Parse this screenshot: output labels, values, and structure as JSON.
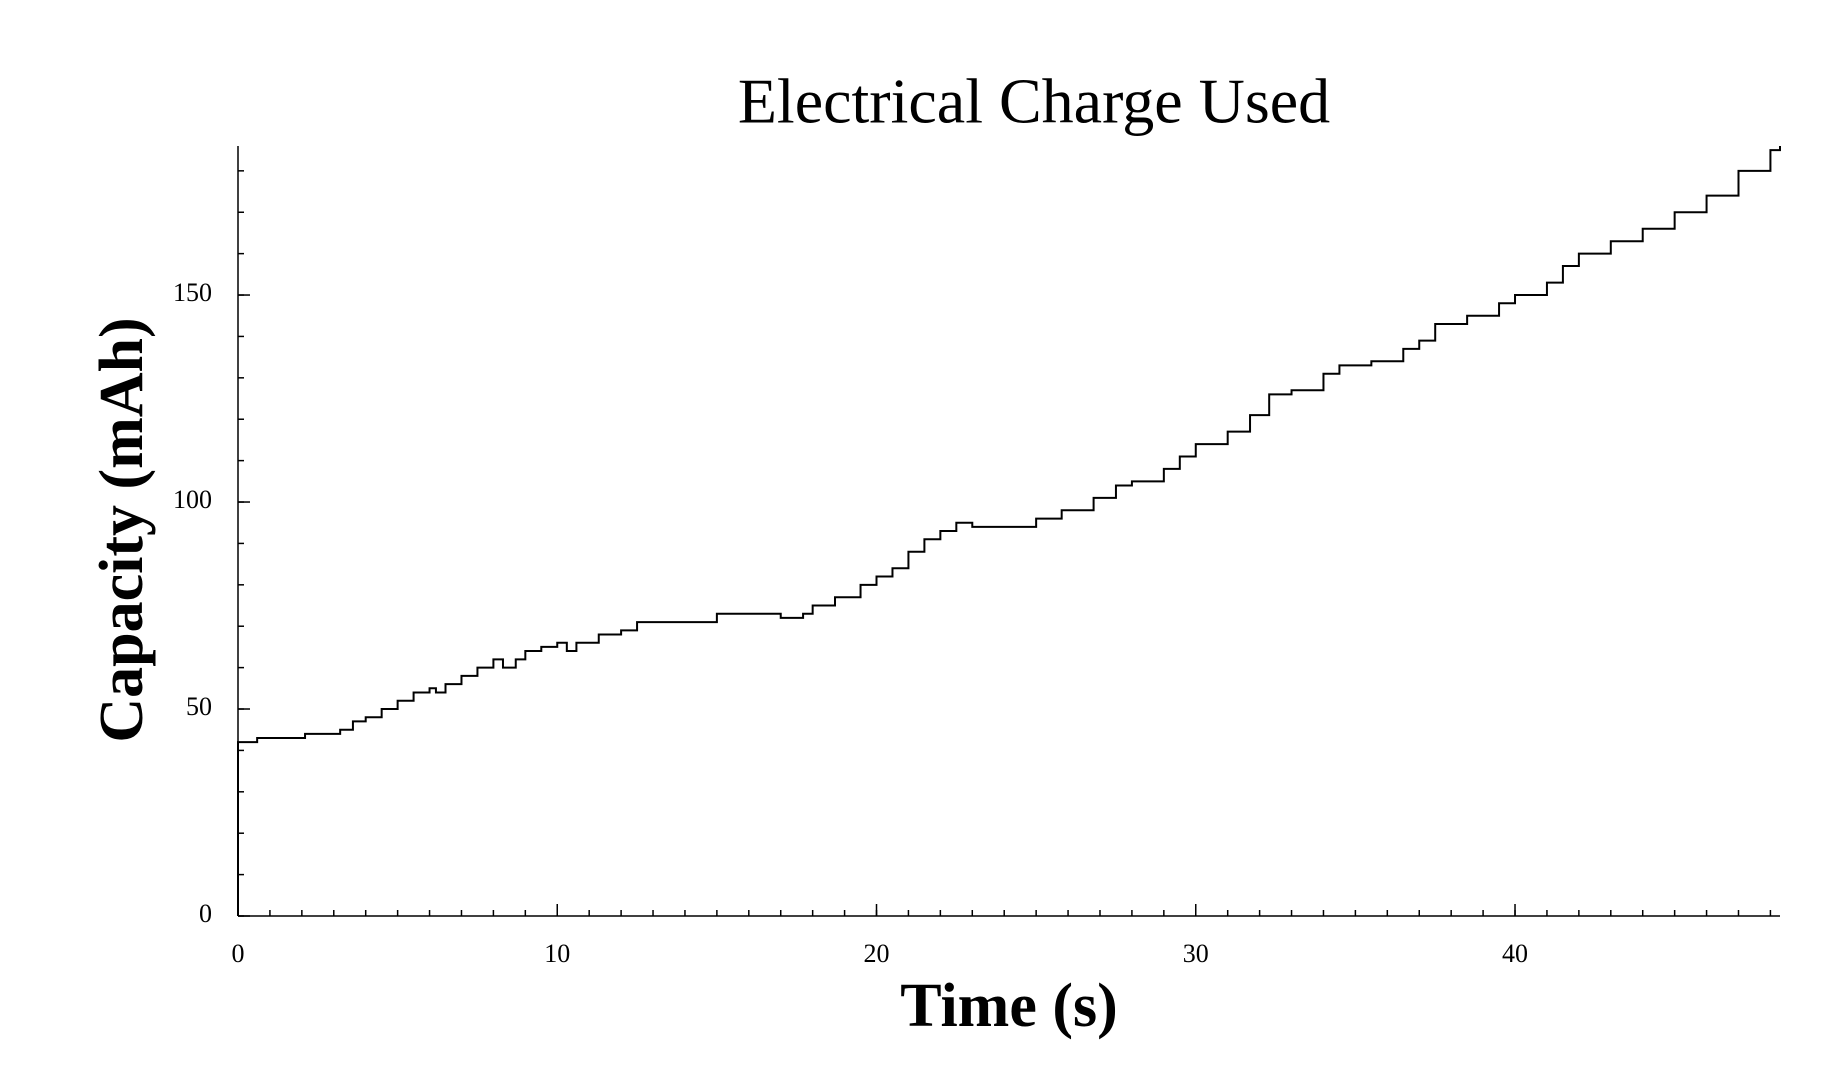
{
  "chart_data": {
    "type": "line",
    "title": "Electrical Charge Used",
    "x_label": "Time (s)",
    "y_label": "Capacity (mAh)",
    "step": true,
    "color": "#000000",
    "x": [
      0,
      0,
      0.6,
      2.1,
      3.2,
      3.6,
      4,
      4.5,
      5,
      5.5,
      6,
      6.2,
      6.5,
      7,
      7.5,
      8,
      8.3,
      8.7,
      9,
      9.5,
      10,
      10.3,
      10.6,
      11.3,
      12,
      12.5,
      13,
      14,
      15,
      16,
      17,
      17.7,
      18,
      18.7,
      19.5,
      20,
      20.5,
      21,
      21.5,
      22,
      22.5,
      23,
      24,
      25,
      25.8,
      26.2,
      26.8,
      27.5,
      28,
      29,
      29.5,
      30,
      31,
      31.7,
      32.3,
      33,
      34,
      34.5,
      35.5,
      36.5,
      37,
      37.5,
      38.5,
      39.5,
      40,
      41,
      41.5,
      42,
      43,
      44,
      45,
      46,
      47,
      48,
      48.3
    ],
    "series": [
      {
        "name": "Capacity",
        "color": "#000000",
        "values": [
          0,
          42,
          43,
          44,
          45,
          47,
          48,
          50,
          52,
          54,
          55,
          54,
          56,
          58,
          60,
          62,
          60,
          62,
          64,
          65,
          66,
          64,
          66,
          68,
          69,
          71,
          71,
          71,
          73,
          73,
          72,
          73,
          75,
          77,
          80,
          82,
          84,
          88,
          91,
          93,
          95,
          94,
          94,
          96,
          98,
          98,
          101,
          104,
          105,
          108,
          111,
          114,
          117,
          121,
          126,
          127,
          131,
          133,
          134,
          137,
          139,
          143,
          145,
          148,
          150,
          153,
          157,
          160,
          163,
          166,
          170,
          174,
          180,
          185,
          186
        ]
      }
    ],
    "xlim": [
      0,
      48.3
    ],
    "xticks": [
      0,
      10,
      20,
      30,
      40
    ],
    "x_minor_step": 1,
    "ylim": [
      0,
      186
    ],
    "yticks": [
      0,
      50,
      100,
      150
    ],
    "y_minor_step": 10
  }
}
